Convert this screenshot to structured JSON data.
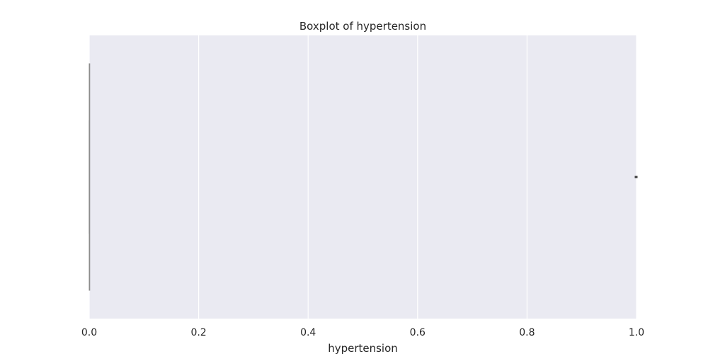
{
  "chart_data": {
    "type": "boxplot",
    "orientation": "horizontal",
    "title": "Boxplot of hypertension",
    "xlabel": "hypertension",
    "ylabel": "",
    "xlim": [
      0.0,
      1.0
    ],
    "xticks": [
      0.0,
      0.2,
      0.4,
      0.6,
      0.8,
      1.0
    ],
    "xtick_labels": [
      "0.0",
      "0.2",
      "0.4",
      "0.6",
      "0.8",
      "1.0"
    ],
    "grid": true,
    "box": {
      "min": 0.0,
      "q1": 0.0,
      "median": 0.0,
      "q3": 0.0,
      "max": 0.0
    },
    "outliers": [
      1.0
    ]
  },
  "colors": {
    "plot_background": "#eaeaf2",
    "grid": "#ffffff",
    "box_line": "#8c8c8c",
    "outlier": "#3d3d3d",
    "text": "#262626"
  }
}
